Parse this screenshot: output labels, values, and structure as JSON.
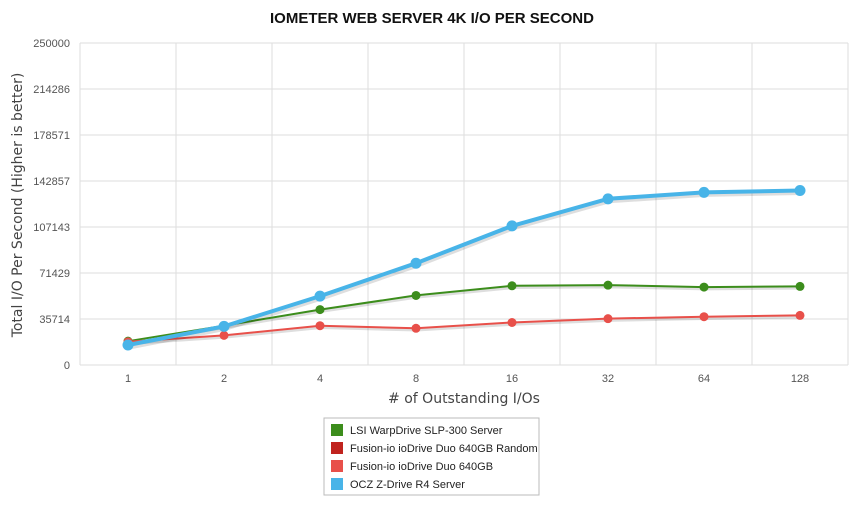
{
  "chart_data": {
    "type": "line",
    "title": "IOMETER WEB SERVER 4K I/O PER SECOND",
    "xlabel": "# of Outstanding I/Os",
    "ylabel": "Total I/O Per Second (Higher is better)",
    "categories": [
      "1",
      "2",
      "4",
      "8",
      "16",
      "32",
      "64",
      "128"
    ],
    "ylim": [
      0,
      250000
    ],
    "yticks": [
      "0",
      "35714",
      "71429",
      "107143",
      "142857",
      "178571",
      "214286",
      "250000"
    ],
    "grid": true,
    "legend_position": "bottom",
    "series": [
      {
        "name": "LSI WarpDrive SLP-300 Server",
        "color": "#3c8d1c",
        "values": [
          18500,
          30500,
          43000,
          54000,
          61500,
          62000,
          60500,
          61000
        ]
      },
      {
        "name": "Fusion-io ioDrive Duo 640GB Random",
        "color": "#c0231e",
        "values": [
          null,
          null,
          null,
          null,
          null,
          null,
          null,
          null
        ]
      },
      {
        "name": "Fusion-io ioDrive Duo 640GB",
        "color": "#e8504a",
        "values": [
          18000,
          23000,
          30500,
          28500,
          33000,
          36000,
          37500,
          38500
        ]
      },
      {
        "name": "OCZ Z-Drive R4 Server",
        "color": "#48b4e8",
        "values": [
          15500,
          30000,
          53500,
          79000,
          108000,
          129000,
          134000,
          135500
        ]
      }
    ]
  }
}
